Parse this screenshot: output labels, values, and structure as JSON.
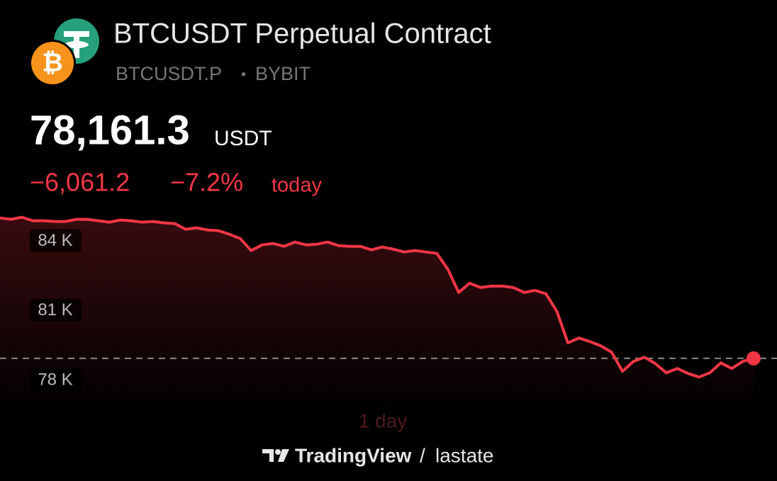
{
  "header": {
    "title": "BTCUSDT Perpetual Contract",
    "symbol": "BTCUSDT.P",
    "separator": "•",
    "exchange": "BYBIT",
    "price": "78,161.3",
    "currency": "USDT",
    "change": "−6,061.2",
    "change_percent": "−7.2%",
    "period": "today"
  },
  "chart_data": {
    "type": "line",
    "color": "#f23645",
    "range_label": "1 day",
    "values": [
      84214,
      84153,
      84244,
      84091,
      84091,
      84061,
      84061,
      84153,
      84153,
      84091,
      84030,
      84122,
      84091,
      84030,
      84061,
      84000,
      83969,
      83724,
      83785,
      83693,
      83663,
      83510,
      83326,
      82806,
      83051,
      83112,
      82989,
      83173,
      83051,
      83081,
      83173,
      83020,
      82989,
      82989,
      82836,
      82959,
      82867,
      82745,
      82806,
      82745,
      82683,
      82010,
      81000,
      81398,
      81214,
      81275,
      81275,
      81214,
      81000,
      81092,
      80939,
      80173,
      78826,
      79041,
      78888,
      78704,
      78429,
      77602,
      78031,
      78214,
      77939,
      77541,
      77725,
      77510,
      77357,
      77541,
      77969,
      77725,
      78031,
      78161.3
    ],
    "ylim": [
      75900,
      84750
    ],
    "yticks": [
      {
        "value": 84000,
        "label": "84 K"
      },
      {
        "value": 81000,
        "label": "81 K"
      },
      {
        "value": 78000,
        "label": "78 K"
      }
    ]
  },
  "footer": {
    "brand": "TradingView",
    "divider": "/",
    "author": "lastate"
  }
}
